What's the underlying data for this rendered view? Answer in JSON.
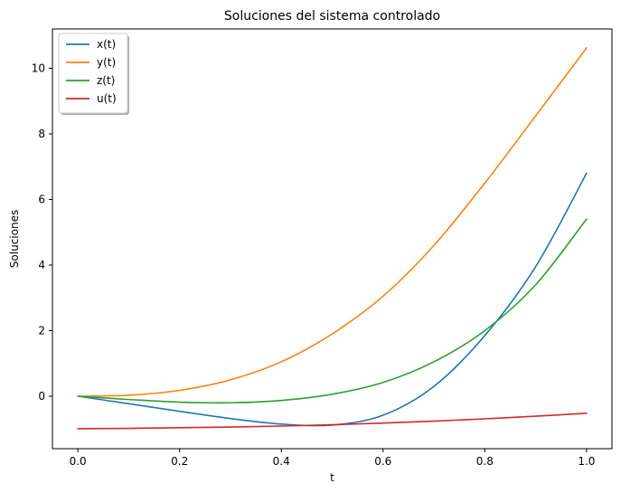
{
  "chart_data": {
    "type": "line",
    "title": "Soluciones del sistema controlado",
    "xlabel": "t",
    "ylabel": "Soluciones",
    "xlim": [
      -0.05,
      1.05
    ],
    "ylim": [
      -1.6,
      11.2
    ],
    "xticks": [
      0.0,
      0.2,
      0.4,
      0.6,
      0.8,
      1.0
    ],
    "xtick_labels": [
      "0.0",
      "0.2",
      "0.4",
      "0.6",
      "0.8",
      "1.0"
    ],
    "yticks": [
      0,
      2,
      4,
      6,
      8,
      10
    ],
    "ytick_labels": [
      "0",
      "2",
      "4",
      "6",
      "8",
      "10"
    ],
    "grid": false,
    "legend_position": "top-left",
    "series": [
      {
        "name": "x(t)",
        "color": "#1f77b4",
        "x": [
          0.0,
          0.1,
          0.2,
          0.3,
          0.4,
          0.5,
          0.6,
          0.7,
          0.8,
          0.9,
          1.0
        ],
        "y": [
          0.0,
          -0.23,
          -0.46,
          -0.68,
          -0.85,
          -0.88,
          -0.58,
          0.3,
          1.85,
          3.95,
          6.8
        ]
      },
      {
        "name": "y(t)",
        "color": "#ff7f0e",
        "x": [
          0.0,
          0.1,
          0.2,
          0.3,
          0.4,
          0.5,
          0.6,
          0.7,
          0.8,
          0.9,
          1.0
        ],
        "y": [
          0.0,
          0.03,
          0.18,
          0.5,
          1.05,
          1.9,
          3.05,
          4.6,
          6.5,
          8.55,
          10.62
        ]
      },
      {
        "name": "z(t)",
        "color": "#2ca02c",
        "x": [
          0.0,
          0.1,
          0.2,
          0.3,
          0.4,
          0.5,
          0.6,
          0.7,
          0.8,
          0.9,
          1.0
        ],
        "y": [
          0.0,
          -0.1,
          -0.18,
          -0.2,
          -0.13,
          0.06,
          0.42,
          1.05,
          2.0,
          3.4,
          5.4
        ]
      },
      {
        "name": "u(t)",
        "color": "#d62728",
        "x": [
          0.0,
          0.1,
          0.2,
          0.3,
          0.4,
          0.5,
          0.6,
          0.7,
          0.8,
          0.9,
          1.0
        ],
        "y": [
          -0.99,
          -0.98,
          -0.96,
          -0.94,
          -0.91,
          -0.87,
          -0.82,
          -0.76,
          -0.69,
          -0.61,
          -0.52
        ]
      }
    ]
  }
}
